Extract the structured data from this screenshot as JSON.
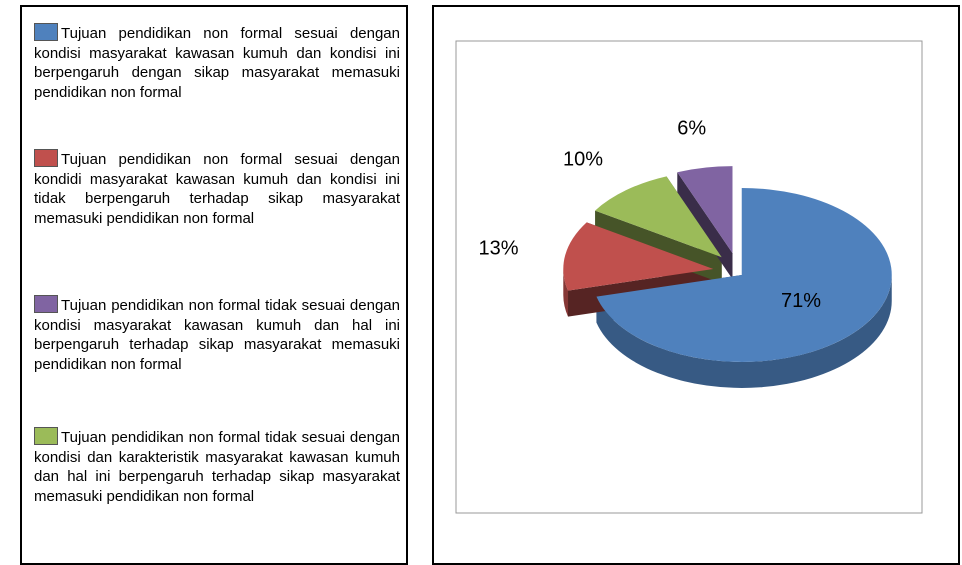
{
  "chart_data": {
    "type": "pie",
    "series": [
      {
        "name": "Tujuan pendidikan non formal sesuai dengan kondisi masyarakat kawasan kumuh dan kondisi ini berpengaruh dengan sikap masyarakat memasuki pendidikan non formal",
        "color": "#4f81bd"
      },
      {
        "name": "Tujuan pendidikan non formal sesuai dengan kondidi masyarakat kawasan kumuh dan kondisi ini tidak berpengaruh terhadap sikap masyarakat memasuki pendidikan non formal",
        "color": "#c0504d"
      },
      {
        "name": "Tujuan pendidikan non formal tidak sesuai dengan kondisi dan karakteristik masyarakat kawasan kumuh dan hal ini berpengaruh terhadap sikap masyarakat memasuki pendidikan non formal",
        "color": "#9bbb59"
      },
      {
        "name": "Tujuan pendidikan non formal tidak sesuai dengan kondisi masyarakat kawasan kumuh dan hal ini  berpengaruh terhadap sikap masyarakat  memasuki pendidikan non formal",
        "color": "#8064a2"
      }
    ],
    "values": [
      71,
      13,
      10,
      6
    ],
    "value_labels": [
      "71%",
      "13%",
      "10%",
      "6%"
    ]
  }
}
